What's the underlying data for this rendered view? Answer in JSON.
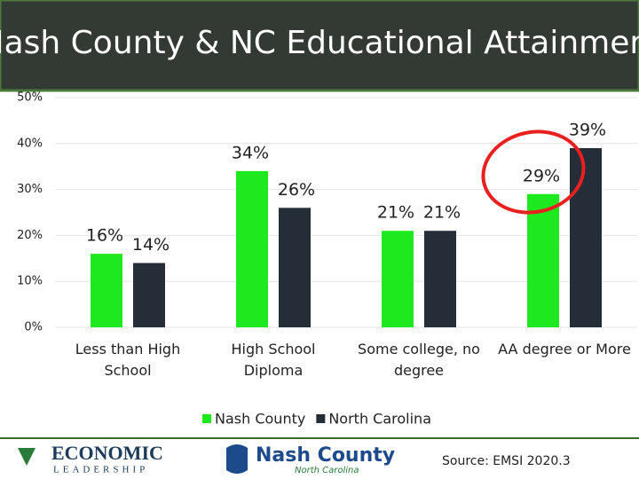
{
  "chart_data": {
    "type": "bar",
    "title": "Nash County & NC Educational Attainment",
    "categories": [
      "Less than High School",
      "High School Diploma",
      "Some college, no degree",
      "AA degree or More"
    ],
    "series": [
      {
        "name": "Nash County",
        "color": "#1ee81e",
        "values": [
          16,
          34,
          21,
          29
        ],
        "value_labels": [
          "16%",
          "34%",
          "21%",
          "29%"
        ]
      },
      {
        "name": "North Carolina",
        "color": "#252d38",
        "values": [
          14,
          26,
          21,
          39
        ],
        "value_labels": [
          "14%",
          "26%",
          "21%",
          "39%"
        ]
      }
    ],
    "ylim": [
      0,
      50
    ],
    "yticks": [
      {
        "value": 0,
        "label": "0%"
      },
      {
        "value": 10,
        "label": "10%"
      },
      {
        "value": 20,
        "label": "20%"
      },
      {
        "value": 30,
        "label": "30%"
      },
      {
        "value": 40,
        "label": "40%"
      },
      {
        "value": 50,
        "label": "50%"
      }
    ],
    "grid": true,
    "legend": "bottom"
  },
  "footer": {
    "logo_left": "ECONOMIC",
    "logo_left_sub": "LEADERSHIP",
    "logo_right": "Nash County",
    "logo_right_sub": "North Carolina",
    "source": "Source: EMSI 2020.3"
  }
}
